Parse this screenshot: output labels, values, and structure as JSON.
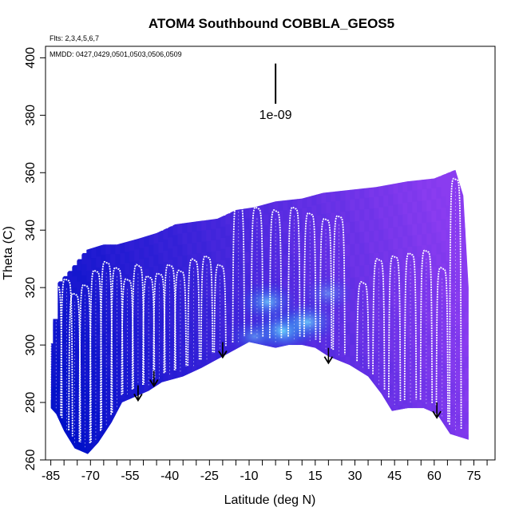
{
  "chart_data": {
    "type": "heatmap",
    "title": "ATOM4 Southbound COBBLA_GEOS5",
    "flights_note": "Flts: 2,3,4,5,6,7",
    "dates_note": "MMDD: 0427,0429,0501,0503,0506,0509",
    "xlabel": "Latitude (deg N)",
    "ylabel": "Theta (C)",
    "xlim": [
      -87,
      83
    ],
    "ylim": [
      260,
      404
    ],
    "x_ticks": [
      -85,
      -70,
      -55,
      -40,
      -25,
      -10,
      5,
      15,
      30,
      45,
      60,
      75
    ],
    "x_minor_ticks": [
      -80,
      -75,
      -65,
      -60,
      -50,
      -45,
      -35,
      -30,
      -20,
      -15,
      -5,
      0,
      10,
      20,
      25,
      35,
      40,
      50,
      55,
      65,
      70,
      80
    ],
    "y_ticks": [
      260,
      280,
      300,
      320,
      340,
      360,
      380,
      400
    ],
    "scale_label": "1e-09",
    "scale_bar": {
      "x": 0,
      "y_top": 398,
      "y_bottom": 384
    },
    "colors": {
      "low": "#0010c8",
      "high": "#8a3cf0",
      "peak": "#5ad8ff",
      "profile": "#ffffff",
      "ground": "#ffffff",
      "arrow": "#000000"
    },
    "top_boundary": [
      {
        "lat": -85,
        "theta": 300
      },
      {
        "lat": -83,
        "theta": 321
      },
      {
        "lat": -78,
        "theta": 326
      },
      {
        "lat": -72,
        "theta": 333
      },
      {
        "lat": -65,
        "theta": 335
      },
      {
        "lat": -60,
        "theta": 335
      },
      {
        "lat": -52,
        "theta": 337
      },
      {
        "lat": -45,
        "theta": 339
      },
      {
        "lat": -38,
        "theta": 342
      },
      {
        "lat": -30,
        "theta": 343
      },
      {
        "lat": -22,
        "theta": 344
      },
      {
        "lat": -15,
        "theta": 347
      },
      {
        "lat": -8,
        "theta": 348
      },
      {
        "lat": 0,
        "theta": 350
      },
      {
        "lat": 10,
        "theta": 351
      },
      {
        "lat": 18,
        "theta": 353
      },
      {
        "lat": 28,
        "theta": 354
      },
      {
        "lat": 38,
        "theta": 355
      },
      {
        "lat": 50,
        "theta": 357
      },
      {
        "lat": 60,
        "theta": 358
      },
      {
        "lat": 68,
        "theta": 361
      },
      {
        "lat": 71,
        "theta": 352
      },
      {
        "lat": 73,
        "theta": 320
      },
      {
        "lat": 73,
        "theta": 267
      }
    ],
    "ground": [
      {
        "lat": -85,
        "theta": 278
      },
      {
        "lat": -83,
        "theta": 276
      },
      {
        "lat": -80,
        "theta": 270
      },
      {
        "lat": -76,
        "theta": 264
      },
      {
        "lat": -71,
        "theta": 262
      },
      {
        "lat": -67,
        "theta": 266
      },
      {
        "lat": -62,
        "theta": 273
      },
      {
        "lat": -58,
        "theta": 280
      },
      {
        "lat": -53,
        "theta": 282
      },
      {
        "lat": -48,
        "theta": 284
      },
      {
        "lat": -43,
        "theta": 287
      },
      {
        "lat": -35,
        "theta": 289
      },
      {
        "lat": -28,
        "theta": 292
      },
      {
        "lat": -20,
        "theta": 296
      },
      {
        "lat": -10,
        "theta": 301
      },
      {
        "lat": 0,
        "theta": 299
      },
      {
        "lat": 5,
        "theta": 300
      },
      {
        "lat": 10,
        "theta": 300
      },
      {
        "lat": 15,
        "theta": 299
      },
      {
        "lat": 20,
        "theta": 296
      },
      {
        "lat": 28,
        "theta": 293
      },
      {
        "lat": 35,
        "theta": 289
      },
      {
        "lat": 40,
        "theta": 283
      },
      {
        "lat": 44,
        "theta": 277
      },
      {
        "lat": 50,
        "theta": 278
      },
      {
        "lat": 56,
        "theta": 278
      },
      {
        "lat": 61,
        "theta": 276
      },
      {
        "lat": 66,
        "theta": 269
      },
      {
        "lat": 73,
        "theta": 267
      }
    ],
    "profiles": [
      {
        "lat": -83,
        "top": 321
      },
      {
        "lat": -79,
        "top": 323
      },
      {
        "lat": -76,
        "top": 318
      },
      {
        "lat": -72,
        "top": 321
      },
      {
        "lat": -68,
        "top": 326
      },
      {
        "lat": -64,
        "top": 329
      },
      {
        "lat": -60,
        "top": 327
      },
      {
        "lat": -56,
        "top": 323
      },
      {
        "lat": -52,
        "top": 328
      },
      {
        "lat": -48,
        "top": 324
      },
      {
        "lat": -44,
        "top": 325
      },
      {
        "lat": -40,
        "top": 328
      },
      {
        "lat": -36,
        "top": 326
      },
      {
        "lat": -31,
        "top": 330
      },
      {
        "lat": -26,
        "top": 331
      },
      {
        "lat": -21,
        "top": 328
      },
      {
        "lat": -14,
        "top": 350
      },
      {
        "lat": -7,
        "top": 348
      },
      {
        "lat": 0,
        "top": 347
      },
      {
        "lat": 7,
        "top": 348
      },
      {
        "lat": 13,
        "top": 346
      },
      {
        "lat": 19,
        "top": 344
      },
      {
        "lat": 24,
        "top": 345
      },
      {
        "lat": 33,
        "top": 322
      },
      {
        "lat": 39,
        "top": 330
      },
      {
        "lat": 45,
        "top": 331
      },
      {
        "lat": 51,
        "top": 332
      },
      {
        "lat": 57,
        "top": 333
      },
      {
        "lat": 63,
        "top": 327
      },
      {
        "lat": 68,
        "top": 358
      }
    ],
    "enhancements": [
      {
        "lat": 3,
        "theta": 305,
        "intensity": 1.0
      },
      {
        "lat": -3,
        "theta": 315,
        "intensity": 0.8
      },
      {
        "lat": 12,
        "theta": 308,
        "intensity": 0.85
      },
      {
        "lat": 20,
        "theta": 318,
        "intensity": 0.5
      },
      {
        "lat": -8,
        "theta": 303,
        "intensity": 0.55
      }
    ],
    "arrows": [
      {
        "lat": -52,
        "theta": 281
      },
      {
        "lat": -46,
        "theta": 286
      },
      {
        "lat": -20,
        "theta": 296
      },
      {
        "lat": 20,
        "theta": 294
      },
      {
        "lat": 61,
        "theta": 275
      }
    ]
  }
}
